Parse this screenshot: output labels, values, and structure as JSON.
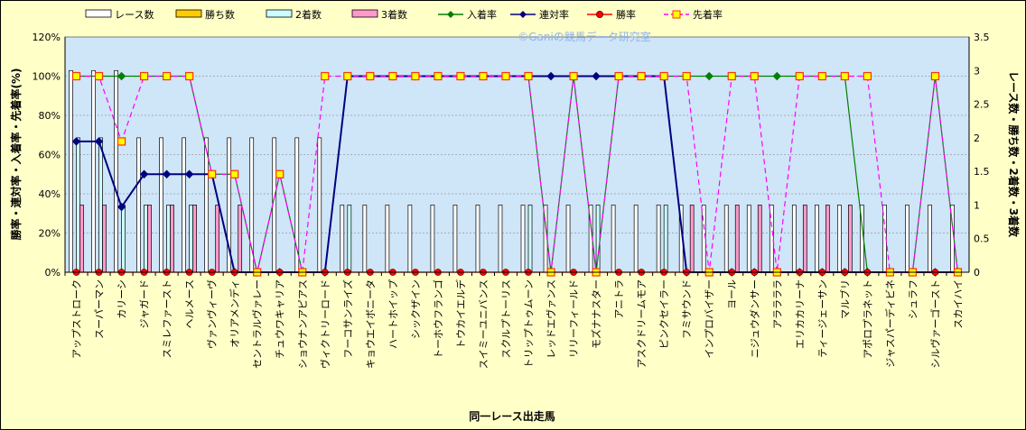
{
  "chart_data": {
    "type": "bar",
    "watermark": "©Ganiの競馬データ研究室",
    "xlabel": "同一レース出走馬",
    "ylabel_left": "勝率・連対率・入着率・先着率(%)",
    "ylabel_right": "レース数・勝ち数・2着数・3着数",
    "y_left": {
      "min": 0,
      "max": 120,
      "step": 20,
      "suffix": "%"
    },
    "y_right": {
      "min": 0,
      "max": 3.5,
      "step": 0.5
    },
    "legend_position": "top",
    "categories": [
      "アップストローク",
      "スーパーマン",
      "カリーシ",
      "ジャガード",
      "スミレファースト",
      "ヘルメース",
      "ヴァンヴィーヴ",
      "オリアメンディ",
      "セントラルヴァレー",
      "チュウワキャリア",
      "ショウナンアピアス",
      "ヴィクトリーロード",
      "フーコサンライズ",
      "キョウエイボニータ",
      "ハートホイップ",
      "シックザイン",
      "トーホウフランゴ",
      "トウカイエルデ",
      "スイミーユニバンス",
      "スクルプトーリス",
      "トリップトゥムーン",
      "レッドエヴァンス",
      "リリーフィールド",
      "モズナナスター",
      "アニトラ",
      "アスクドリームモア",
      "ピンクセイラー",
      "フミサウンド",
      "インプロバイザー",
      "ヨール",
      "ニジュウダンサー",
      "アララララ",
      "エリカカリーナ",
      "ティージェーサン",
      "マルブリ",
      "アポロプラネット",
      "ジャスパーディビネ",
      "シュラフ",
      "シルヴァーゴースト",
      "スカイハイ"
    ],
    "series": [
      {
        "name": "レース数",
        "axis": "right",
        "kind": "bar",
        "color": "#ffffff",
        "values": [
          3,
          3,
          3,
          2,
          2,
          2,
          2,
          2,
          2,
          2,
          2,
          2,
          1,
          1,
          1,
          1,
          1,
          1,
          1,
          1,
          1,
          1,
          1,
          1,
          1,
          1,
          1,
          1,
          1,
          1,
          1,
          1,
          1,
          1,
          1,
          1,
          1,
          1,
          1,
          1
        ]
      },
      {
        "name": "勝ち数",
        "axis": "right",
        "kind": "bar",
        "color": "#ffcc00",
        "values": [
          0,
          0,
          0,
          0,
          0,
          0,
          0,
          0,
          0,
          0,
          0,
          0,
          0,
          0,
          0,
          0,
          0,
          0,
          0,
          0,
          0,
          0,
          0,
          0,
          0,
          0,
          0,
          0,
          0,
          0,
          0,
          0,
          0,
          0,
          0,
          0,
          0,
          0,
          0,
          0
        ]
      },
      {
        "name": "2着数",
        "axis": "right",
        "kind": "bar",
        "color": "#ccffff",
        "values": [
          2,
          2,
          1,
          1,
          1,
          1,
          0,
          0,
          0,
          0,
          0,
          0,
          1,
          0,
          0,
          0,
          0,
          0,
          0,
          0,
          1,
          0,
          0,
          1,
          0,
          0,
          1,
          0,
          0,
          0,
          0,
          0,
          0,
          0,
          0,
          0,
          0,
          0,
          0,
          0
        ]
      },
      {
        "name": "3着数",
        "axis": "right",
        "kind": "bar",
        "color": "#ff99cc",
        "values": [
          1,
          1,
          0,
          1,
          1,
          1,
          1,
          1,
          0,
          0,
          0,
          0,
          0,
          0,
          0,
          0,
          0,
          0,
          0,
          0,
          0,
          0,
          0,
          0,
          0,
          0,
          0,
          1,
          0,
          1,
          1,
          0,
          1,
          1,
          1,
          0,
          0,
          0,
          0,
          0
        ]
      },
      {
        "name": "入着率",
        "axis": "left",
        "kind": "line",
        "color": "#008000",
        "marker": "diamond",
        "values": [
          100,
          100,
          100,
          100,
          100,
          100,
          50,
          50,
          0,
          50,
          0,
          0,
          100,
          100,
          100,
          100,
          100,
          100,
          100,
          100,
          100,
          0,
          100,
          0,
          100,
          100,
          100,
          100,
          100,
          100,
          100,
          100,
          100,
          100,
          100,
          0,
          0,
          0,
          100,
          0
        ]
      },
      {
        "name": "連対率",
        "axis": "left",
        "kind": "line",
        "color": "#000080",
        "marker": "diamond",
        "values": [
          66.7,
          66.7,
          33.3,
          50,
          50,
          50,
          50,
          0,
          0,
          0,
          0,
          0,
          100,
          100,
          100,
          100,
          100,
          100,
          100,
          100,
          100,
          100,
          100,
          100,
          100,
          100,
          100,
          0,
          0,
          0,
          0,
          0,
          0,
          0,
          0,
          0,
          0,
          0,
          0,
          0
        ]
      },
      {
        "name": "勝率",
        "axis": "left",
        "kind": "line",
        "color": "#ff0000",
        "marker": "circle",
        "values": [
          0,
          0,
          0,
          0,
          0,
          0,
          0,
          0,
          0,
          0,
          0,
          0,
          0,
          0,
          0,
          0,
          0,
          0,
          0,
          0,
          0,
          0,
          0,
          0,
          0,
          0,
          0,
          0,
          0,
          0,
          0,
          0,
          0,
          0,
          0,
          0,
          0,
          0,
          0,
          0
        ]
      },
      {
        "name": "先着率",
        "axis": "left",
        "kind": "line",
        "color": "#ff00ff",
        "dash": true,
        "marker": "square",
        "values": [
          100,
          100,
          66.7,
          100,
          100,
          100,
          50,
          50,
          0,
          50,
          0,
          100,
          100,
          100,
          100,
          100,
          100,
          100,
          100,
          100,
          100,
          0,
          100,
          0,
          100,
          100,
          100,
          100,
          0,
          100,
          100,
          0,
          100,
          100,
          100,
          100,
          0,
          0,
          100,
          0
        ]
      }
    ]
  }
}
